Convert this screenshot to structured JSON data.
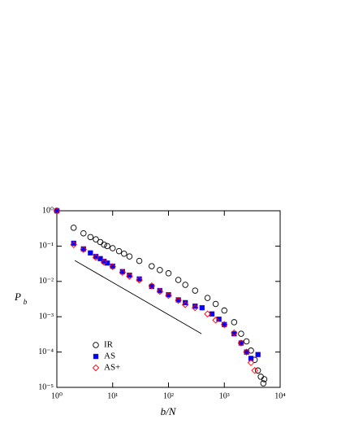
{
  "chart_data": {
    "type": "scatter",
    "xlabel": "b/N",
    "ylabel": "P",
    "ylabel_sub": "b",
    "xscale": "log",
    "yscale": "log",
    "xlim": [
      1,
      10000
    ],
    "ylim": [
      1e-05,
      1
    ],
    "xticks": [
      {
        "value": 1,
        "label": "10⁰"
      },
      {
        "value": 10,
        "label": "10¹"
      },
      {
        "value": 100,
        "label": "10²"
      },
      {
        "value": 1000,
        "label": "10³"
      },
      {
        "value": 10000,
        "label": "10⁴"
      }
    ],
    "yticks": [
      {
        "value": 1e-05,
        "label": "10⁻⁵"
      },
      {
        "value": 0.0001,
        "label": "10⁻⁴"
      },
      {
        "value": 0.001,
        "label": "10⁻³"
      },
      {
        "value": 0.01,
        "label": "10⁻²"
      },
      {
        "value": 0.1,
        "label": "10⁻¹"
      },
      {
        "value": 1,
        "label": "10⁰"
      }
    ],
    "legend": "lower left",
    "series": [
      {
        "name": "IR",
        "color": "#000000",
        "marker": "circle",
        "x": [
          1,
          2,
          3,
          4,
          5,
          6,
          7,
          8,
          10,
          13,
          16,
          20,
          30,
          50,
          70,
          100,
          150,
          200,
          300,
          500,
          700,
          1000,
          1500,
          2000,
          2500,
          3000,
          3500,
          4000,
          4500,
          5000,
          5200
        ],
        "values": [
          1,
          0.33,
          0.23,
          0.18,
          0.155,
          0.13,
          0.11,
          0.1,
          0.087,
          0.072,
          0.061,
          0.051,
          0.038,
          0.027,
          0.021,
          0.017,
          0.011,
          0.008,
          0.0055,
          0.0034,
          0.0023,
          0.0015,
          0.0007,
          0.00033,
          0.0002,
          0.00011,
          6e-05,
          3e-05,
          2e-05,
          1.3e-05,
          1.7e-05
        ]
      },
      {
        "name": "AS",
        "color": "#0000ff",
        "marker": "square",
        "x": [
          1,
          2,
          3,
          4,
          5,
          6,
          7,
          8,
          10,
          15,
          20,
          30,
          50,
          70,
          100,
          150,
          200,
          300,
          400,
          600,
          800,
          1000,
          1500,
          2000,
          2500,
          3000,
          4000
        ],
        "values": [
          1,
          0.12,
          0.083,
          0.064,
          0.051,
          0.044,
          0.037,
          0.033,
          0.027,
          0.019,
          0.015,
          0.0117,
          0.0072,
          0.0055,
          0.0042,
          0.003,
          0.0025,
          0.002,
          0.0018,
          0.0012,
          0.00085,
          0.0006,
          0.00033,
          0.00018,
          0.0001,
          6.6e-05,
          8.5e-05
        ]
      },
      {
        "name": "AS+",
        "color": "#ff0000",
        "marker": "diamond",
        "x": [
          1,
          2,
          3,
          5,
          7,
          10,
          15,
          20,
          30,
          50,
          70,
          100,
          150,
          200,
          300,
          500,
          700,
          1000,
          1500,
          2000,
          2500,
          3000,
          3500
        ],
        "values": [
          1,
          0.11,
          0.08,
          0.048,
          0.035,
          0.026,
          0.018,
          0.014,
          0.011,
          0.0075,
          0.0052,
          0.004,
          0.0029,
          0.0022,
          0.0018,
          0.0012,
          0.0008,
          0.0006,
          0.00035,
          0.00018,
          0.0001,
          5e-05,
          3e-05
        ]
      }
    ],
    "reference_line": {
      "color": "#000000",
      "x": [
        2.1,
        390
      ],
      "values": [
        0.039,
        0.00033
      ]
    }
  }
}
